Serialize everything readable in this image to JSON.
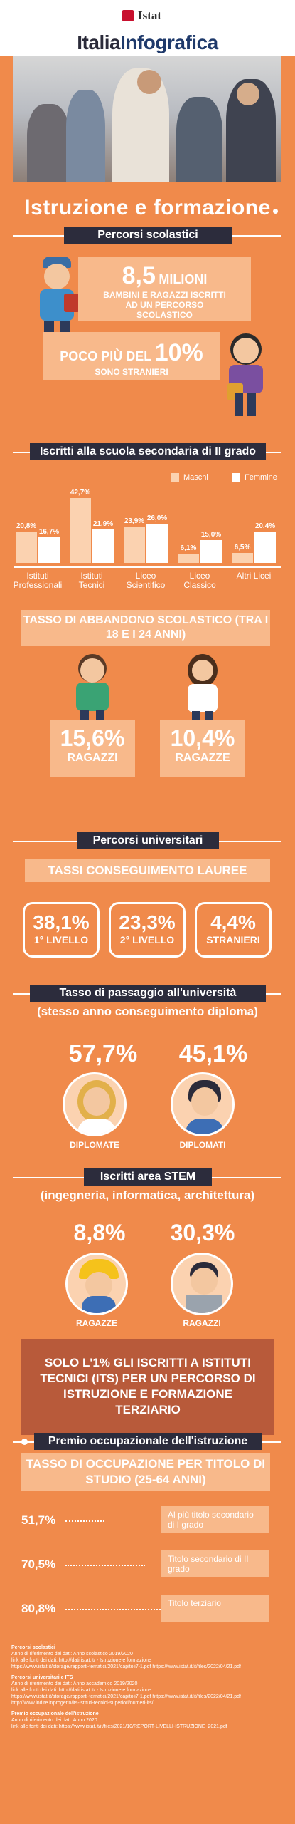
{
  "header": {
    "logo_text": "Istat",
    "brand_part1": "Italia",
    "brand_part2": "Infografica"
  },
  "title": "Istruzione e formazione",
  "sections": {
    "percorsi_scolastici": "Percorsi scolastici",
    "iscritti_secondaria": "Iscritti alla scuola secondaria di II grado",
    "percorsi_universitari": "Percorsi universitari",
    "passaggio_univ": "Tasso di passaggio all'università",
    "passaggio_univ_sub": "(stesso anno conseguimento diploma)",
    "stem": "Iscritti area STEM",
    "stem_sub": "(ingegneria, informatica, architettura)",
    "premio": "Premio occupazionale dell'istruzione"
  },
  "scolastici": {
    "milioni_num": "8,5",
    "milioni_unit": "MILIONI",
    "milioni_text": "BAMBINI E RAGAZZI ISCRITTI AD UN PERCORSO SCOLASTICO",
    "stranieri_pre": "POCO PIÙ DEL",
    "stranieri_num": "10%",
    "stranieri_text": "SONO STRANIERI"
  },
  "chart_data": {
    "type": "bar",
    "categories": [
      "Istituti Professionali",
      "Istituti Tecnici",
      "Liceo Scientifico",
      "Liceo Classico",
      "Altri Licei"
    ],
    "series": [
      {
        "name": "Maschi",
        "values": [
          20.8,
          42.7,
          23.9,
          6.1,
          6.5
        ],
        "labels": [
          "20,8%",
          "42,7%",
          "23,9%",
          "6,1%",
          "6,5%"
        ]
      },
      {
        "name": "Femmine",
        "values": [
          16.7,
          21.9,
          26.0,
          15.0,
          20.4
        ],
        "labels": [
          "16,7%",
          "21,9%",
          "26,0%",
          "15,0%",
          "20,4%"
        ]
      }
    ],
    "colors": {
      "Maschi": "#fbd2b0",
      "Femmine": "#ffffff"
    }
  },
  "abbandono": {
    "title": "TASSO DI ABBANDONO SCOLASTICO (TRA I 18 E I 24 ANNI)",
    "ragazzi_val": "15,6%",
    "ragazzi_label": "RAGAZZI",
    "ragazze_val": "10,4%",
    "ragazze_label": "RAGAZZE"
  },
  "lauree": {
    "title": "TASSI CONSEGUIMENTO LAUREE",
    "items": [
      {
        "val": "38,1%",
        "label": "1° LIVELLO"
      },
      {
        "val": "23,3%",
        "label": "2° LIVELLO"
      },
      {
        "val": "4,4%",
        "label": "STRANIERI"
      }
    ]
  },
  "passaggio": {
    "diplomate_val": "57,7%",
    "diplomate_label": "DIPLOMATE",
    "diplomati_val": "45,1%",
    "diplomati_label": "DIPLOMATI"
  },
  "stem": {
    "ragazze_val": "8,8%",
    "ragazze_label": "RAGAZZE",
    "ragazzi_val": "30,3%",
    "ragazzi_label": "RAGAZZI"
  },
  "its_text": "SOLO L'1% GLI ISCRITTI A ISTITUTI TECNICI (ITS) PER UN PERCORSO DI ISTRUZIONE E FORMAZIONE TERZIARIO",
  "occupazione": {
    "title": "TASSO DI OCCUPAZIONE PER TITOLO DI STUDIO (25-64 ANNI)",
    "rows": [
      {
        "val": "51,7%",
        "label": "Al più titolo secondario di I grado",
        "value": 51.7
      },
      {
        "val": "70,5%",
        "label": "Titolo secondario di II grado",
        "value": 70.5
      },
      {
        "val": "80,8%",
        "label": "Titolo terziario",
        "value": 80.8
      }
    ]
  },
  "footnotes": [
    {
      "head": "Percorsi scolastici",
      "lines": [
        "Anno di riferimento dei dati: Anno scolastico 2019/2020",
        "link alle fonti dei dati: http://dati.istat.it/ - Istruzione e formazione",
        "https://www.istat.it/storage/rapporti-tematici/2021/capitoli7-1.pdf https://www.istat.it/it/files/2022/04/21.pdf"
      ]
    },
    {
      "head": "Percorsi universitari e ITS",
      "lines": [
        "Anno di riferimento dei dati: Anno accademico 2019/2020",
        "link alle fonti dei dati: http://dati.istat.it/ - Istruzione e formazione",
        "https://www.istat.it/storage/rapporti-tematici/2021/capitoli7-1.pdf https://www.istat.it/it/files/2022/04/21.pdf",
        "http://www.indire.it/progetto/its-istituti-tecnici-superiori/numeri-its/"
      ]
    },
    {
      "head": "Premio occupazionale dell'istruzione",
      "lines": [
        "Anno di riferimento dei dati: Anno 2020",
        "link alle fonti dei dati: https://www.istat.it/it/files/2021/10/REPORT-LIVELLI-ISTRUZIONE_2021.pdf"
      ]
    }
  ]
}
